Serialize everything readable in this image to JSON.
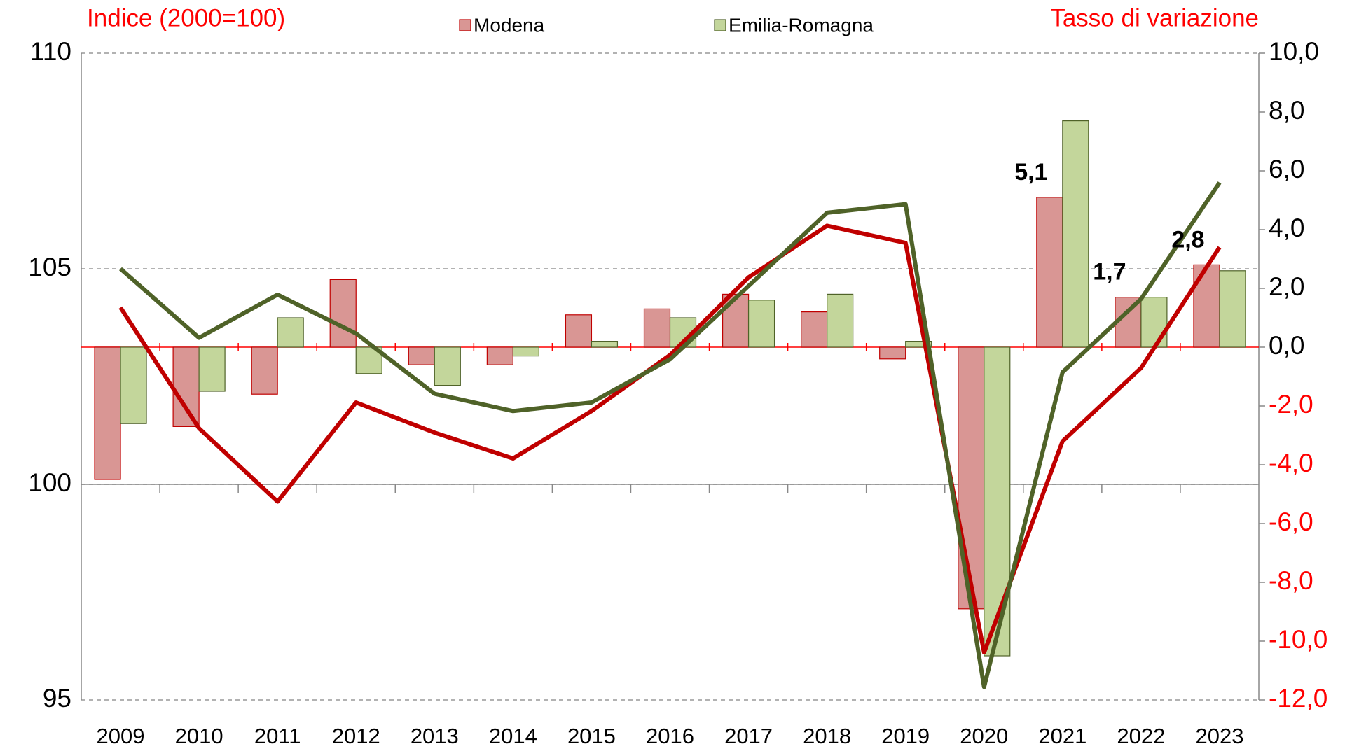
{
  "chart_data": {
    "type": "bar_line",
    "y_axis_label": "Indice (2000=100)",
    "y2_axis_label": "Tasso di variazione",
    "categories": [
      "2009",
      "2010",
      "2011",
      "2012",
      "2013",
      "2014",
      "2015",
      "2016",
      "2017",
      "2018",
      "2019",
      "2020",
      "2021",
      "2022",
      "2023"
    ],
    "series": [
      {
        "name": "Modena",
        "color": "#d99694",
        "line_color": "#c00000",
        "axis": "y2",
        "values": [
          -4.5,
          -2.7,
          -1.6,
          2.3,
          -0.6,
          -0.6,
          1.1,
          1.3,
          1.8,
          1.2,
          -0.4,
          -8.9,
          5.1,
          1.7,
          2.8
        ],
        "value_labels": [
          null,
          null,
          null,
          null,
          null,
          null,
          null,
          null,
          null,
          null,
          null,
          null,
          "5,1",
          "1,7",
          "2,8"
        ],
        "line_values": [
          104.1,
          101.3,
          99.6,
          101.9,
          101.2,
          100.6,
          101.7,
          103.0,
          104.8,
          106.0,
          105.6,
          96.1,
          101.0,
          102.7,
          105.5
        ]
      },
      {
        "name": "Emilia-Romagna",
        "color": "#c3d69b",
        "line_color": "#4f6228",
        "axis": "y2",
        "values": [
          -2.6,
          -1.5,
          1.0,
          -0.9,
          -1.3,
          -0.3,
          0.2,
          1.0,
          1.6,
          1.8,
          0.2,
          -10.5,
          7.7,
          1.7,
          2.6
        ],
        "line_values": [
          105.0,
          103.4,
          104.4,
          103.5,
          102.1,
          101.7,
          101.9,
          102.9,
          104.6,
          106.3,
          106.5,
          95.3,
          102.6,
          104.3,
          107.0
        ]
      }
    ],
    "ylim": [
      95,
      110
    ],
    "yticks": [
      95,
      100,
      105,
      110
    ],
    "x_axis_at": 100,
    "y2lim": [
      -12,
      10
    ],
    "y2ticks": [
      {
        "value": -12,
        "label": "-12,0"
      },
      {
        "value": -10,
        "label": "-10,0"
      },
      {
        "value": -8,
        "label": "-8,0"
      },
      {
        "value": -6,
        "label": "-6,0"
      },
      {
        "value": -4,
        "label": "-4,0"
      },
      {
        "value": -2,
        "label": "-2,0"
      },
      {
        "value": 0,
        "label": "0,0"
      },
      {
        "value": 2,
        "label": "2,0"
      },
      {
        "value": 4,
        "label": "4,0"
      },
      {
        "value": 6,
        "label": "6,0"
      },
      {
        "value": 8,
        "label": "8,0"
      },
      {
        "value": 10,
        "label": "10,0"
      }
    ],
    "y2_negative_label_color": "#ff0000",
    "axis_label_color": "#ff0000",
    "grid": true
  }
}
